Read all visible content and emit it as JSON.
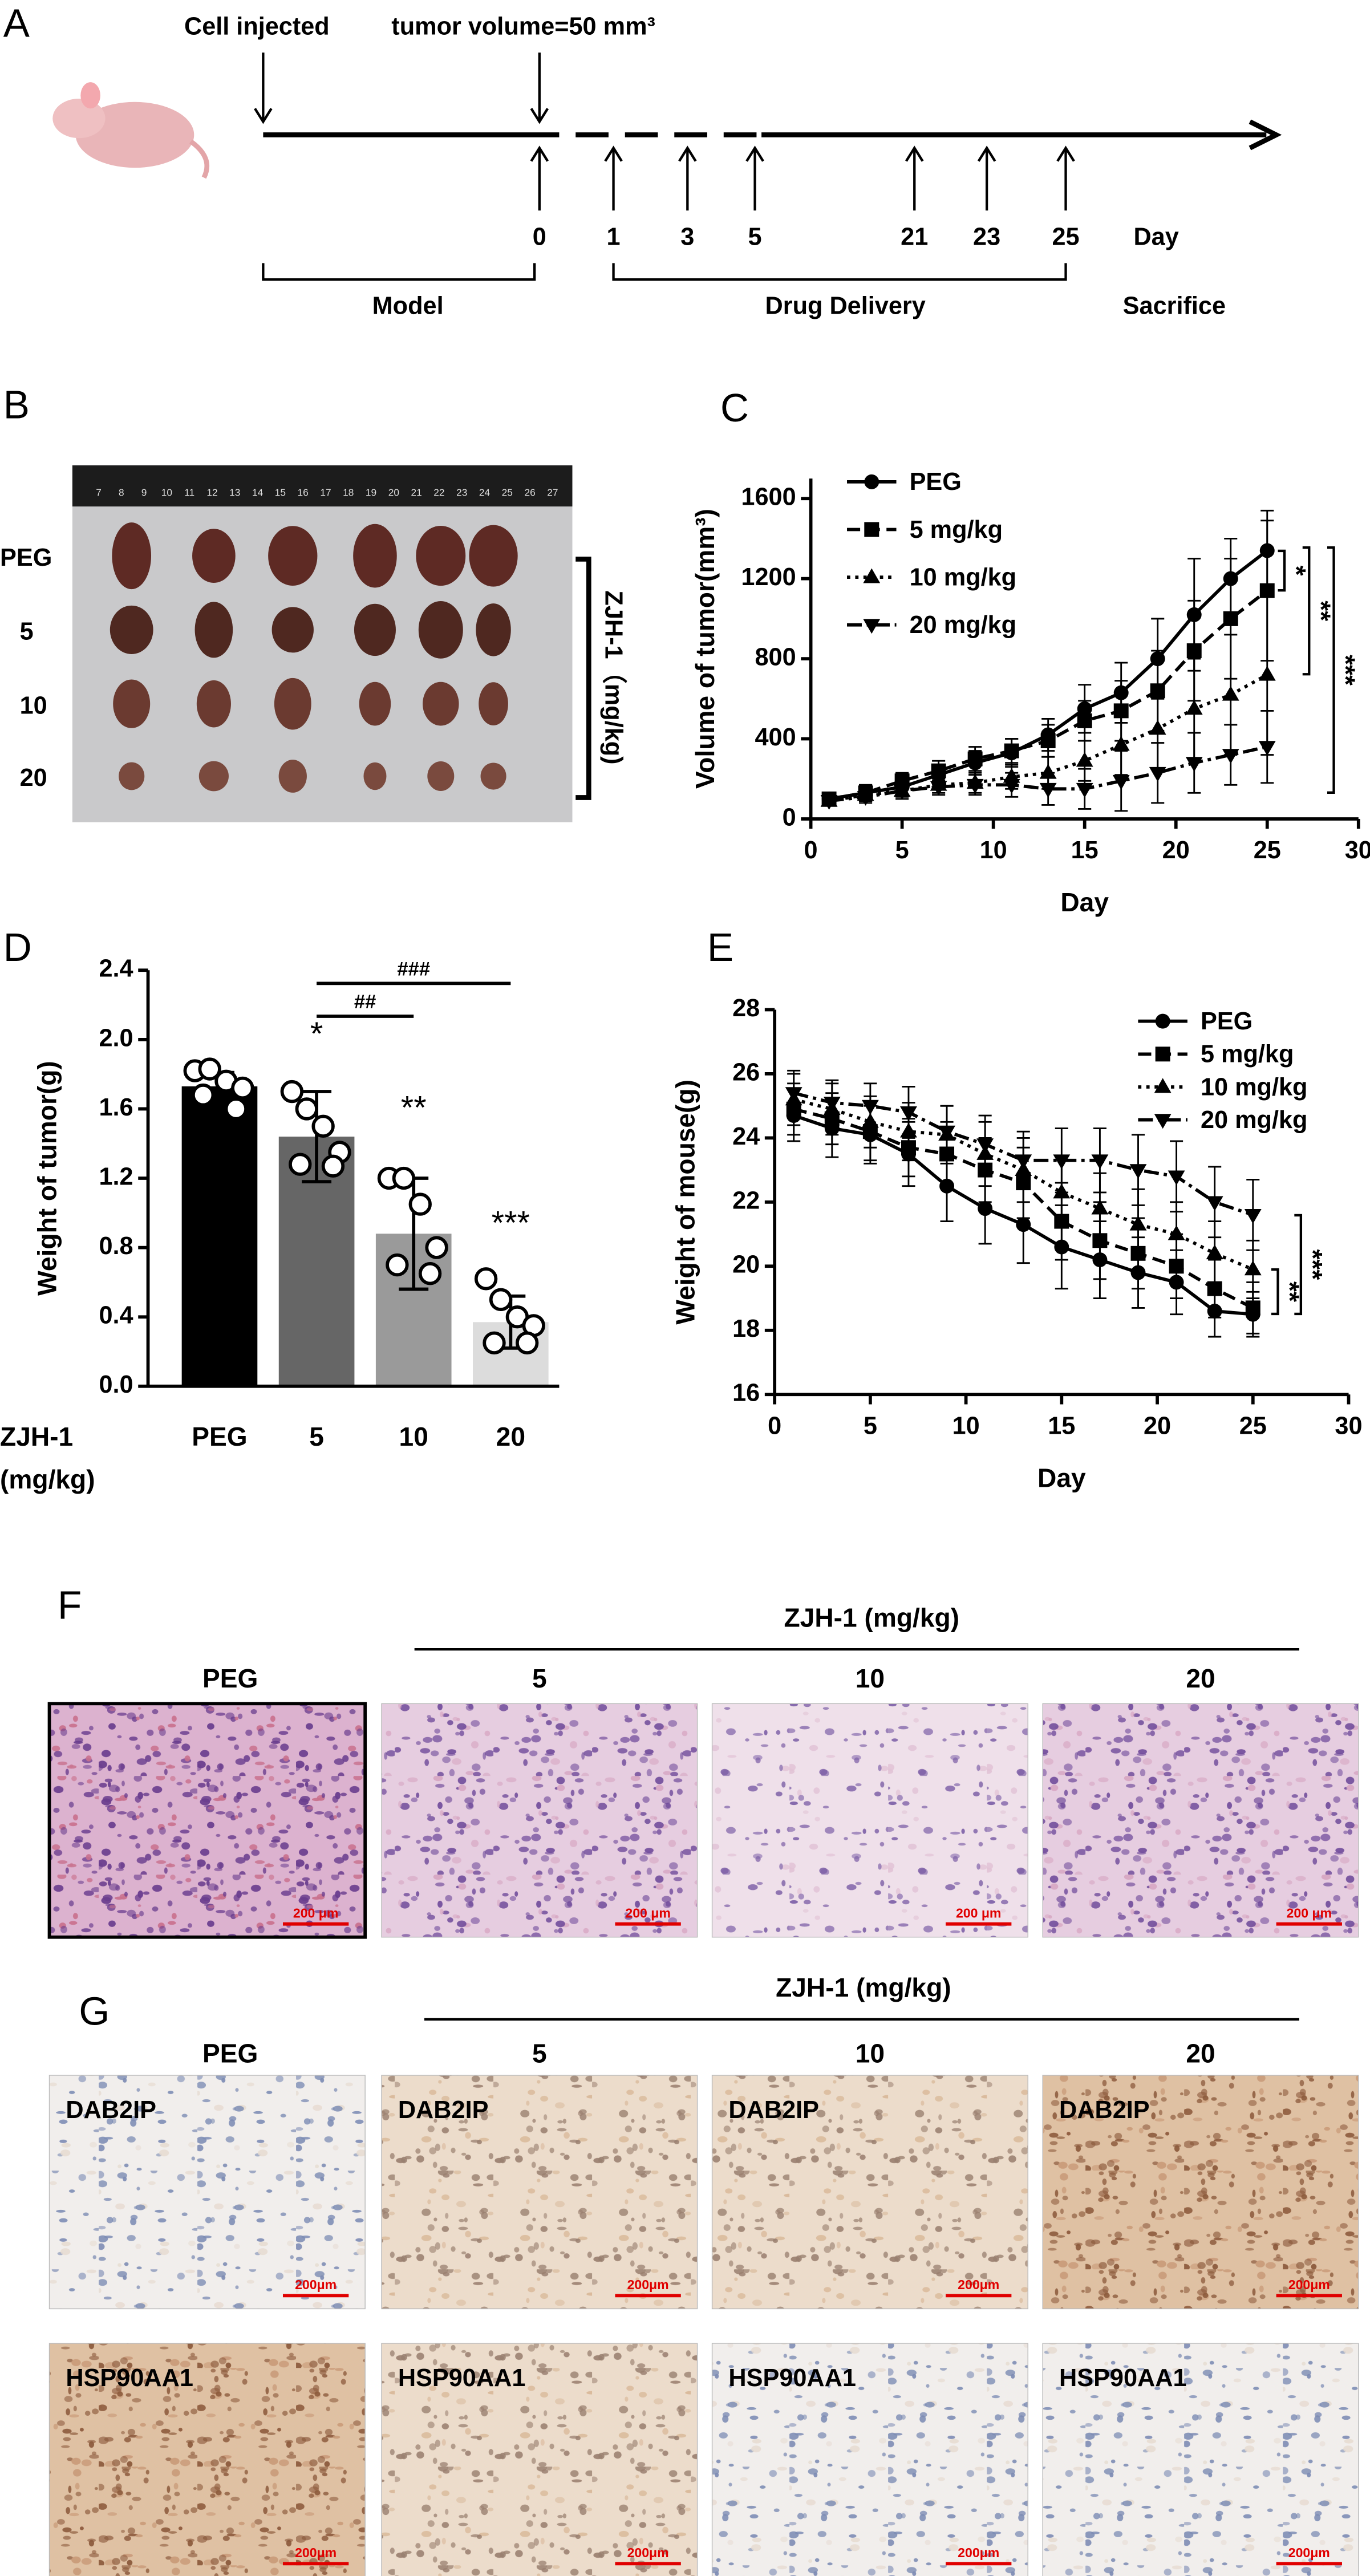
{
  "panel_labels": [
    "A",
    "B",
    "C",
    "D",
    "E",
    "F",
    "G"
  ],
  "timeline": {
    "events": [
      "Cell injected",
      "tumor volume=50 mm³"
    ],
    "days": [
      "0",
      "1",
      "3",
      "5",
      "21",
      "23",
      "25"
    ],
    "day_label": "Day",
    "phases": [
      "Model",
      "Drug Delivery",
      "Sacrifice"
    ]
  },
  "photo": {
    "ruler": [
      "7",
      "8",
      "9",
      "10",
      "11",
      "12",
      "13",
      "14",
      "15",
      "16",
      "17",
      "18",
      "19",
      "20",
      "21",
      "22",
      "23",
      "24",
      "25",
      "26",
      "27"
    ],
    "rows": [
      "PEG",
      "5",
      "10",
      "20"
    ],
    "bracket_label": "ZJH-1（mg/kg)"
  },
  "chart_data": [
    {
      "type": "line",
      "x": [
        1,
        3,
        5,
        7,
        9,
        11,
        13,
        15,
        17,
        19,
        21,
        23,
        25
      ],
      "xlim": [
        0,
        30
      ],
      "xticks": [
        0,
        5,
        10,
        15,
        20,
        25,
        30
      ],
      "ylim": [
        0,
        1700
      ],
      "yticks": [
        0,
        400,
        800,
        1200,
        1600
      ],
      "xlabel": "Day",
      "ylabel": "Volume of tumor(mm³)",
      "legend": "upper left",
      "series": [
        {
          "name": "PEG",
          "color": "#000000",
          "marker": "circle",
          "dash": "solid",
          "values": [
            100,
            130,
            160,
            220,
            280,
            330,
            420,
            550,
            630,
            800,
            1020,
            1200,
            1340
          ],
          "errors": [
            30,
            40,
            40,
            50,
            60,
            70,
            80,
            120,
            150,
            200,
            280,
            200,
            200
          ]
        },
        {
          "name": "5 mg/kg",
          "color": "#000000",
          "marker": "square",
          "dash": "dashed",
          "values": [
            100,
            130,
            190,
            240,
            300,
            340,
            390,
            490,
            540,
            640,
            840,
            1000,
            1140
          ],
          "errors": [
            30,
            40,
            40,
            50,
            60,
            60,
            80,
            100,
            150,
            200,
            250,
            300,
            350
          ]
        },
        {
          "name": "10 mg/kg",
          "color": "#000000",
          "marker": "triangle-up",
          "dash": "dotted",
          "values": [
            90,
            120,
            140,
            170,
            180,
            210,
            230,
            290,
            370,
            450,
            550,
            620,
            720
          ],
          "errors": [
            20,
            30,
            30,
            40,
            50,
            60,
            80,
            100,
            150,
            200,
            250,
            300,
            400
          ]
        },
        {
          "name": "20 mg/kg",
          "color": "#000000",
          "marker": "triangle-down",
          "dash": "dashdot",
          "values": [
            90,
            110,
            140,
            160,
            170,
            170,
            150,
            150,
            190,
            230,
            280,
            320,
            360
          ],
          "errors": [
            20,
            30,
            40,
            40,
            50,
            60,
            80,
            100,
            150,
            150,
            150,
            150,
            180
          ]
        }
      ],
      "annotations": [
        "*",
        "**",
        "***"
      ]
    },
    {
      "type": "bar",
      "categories": [
        "PEG",
        "5",
        "10",
        "20"
      ],
      "values": [
        1.73,
        1.44,
        0.88,
        0.37
      ],
      "errors": [
        0.08,
        0.26,
        0.32,
        0.15
      ],
      "colors": [
        "#000000",
        "#666666",
        "#9a9a9a",
        "#dcdcdc"
      ],
      "points": [
        [
          1.82,
          1.83,
          1.76,
          1.72,
          1.68,
          1.6
        ],
        [
          1.7,
          1.6,
          1.5,
          1.35,
          1.28,
          1.27
        ],
        [
          1.2,
          1.2,
          1.05,
          0.8,
          0.7,
          0.65
        ],
        [
          0.62,
          0.5,
          0.4,
          0.35,
          0.25,
          0.25
        ]
      ],
      "ylim": [
        0,
        2.4
      ],
      "yticks": [
        {
          "value": 0,
          "label": "0.0"
        },
        0.4,
        0.8,
        1.2,
        1.6,
        {
          "value": 2,
          "label": "2.0"
        },
        2.4
      ],
      "ylabel": "Weight of tumor(g)",
      "xlabel": [
        "ZJH-1",
        "(mg/kg)"
      ],
      "annotations": [
        "*",
        "**",
        "***",
        "##",
        "###"
      ]
    },
    {
      "type": "line",
      "x": [
        1,
        3,
        5,
        7,
        9,
        11,
        13,
        15,
        17,
        19,
        21,
        23,
        25
      ],
      "xlim": [
        0,
        30
      ],
      "xticks": [
        0,
        5,
        10,
        15,
        20,
        25,
        30
      ],
      "ylim": [
        16,
        28
      ],
      "yticks": [
        16,
        18,
        20,
        22,
        24,
        26,
        28
      ],
      "xlabel": "Day",
      "ylabel": "Weight of mouse(g)",
      "legend": "upper right",
      "series": [
        {
          "name": "PEG",
          "color": "#000000",
          "marker": "circle",
          "dash": "solid",
          "values": [
            24.7,
            24.3,
            24.1,
            23.5,
            22.5,
            21.8,
            21.3,
            20.6,
            20.2,
            19.8,
            19.5,
            18.6,
            18.5
          ],
          "errors": [
            0.8,
            0.9,
            0.9,
            1.0,
            1.1,
            1.1,
            1.2,
            1.3,
            1.2,
            1.1,
            1.0,
            0.8,
            0.7
          ]
        },
        {
          "name": "5 mg/kg",
          "color": "#000000",
          "marker": "square",
          "dash": "dashed",
          "values": [
            24.9,
            24.6,
            24.2,
            23.7,
            23.5,
            23.0,
            22.6,
            21.4,
            20.8,
            20.4,
            20.0,
            19.3,
            18.7
          ],
          "errors": [
            0.8,
            0.8,
            0.9,
            0.9,
            1.0,
            1.0,
            1.1,
            1.2,
            1.2,
            1.1,
            1.0,
            0.9,
            0.8
          ]
        },
        {
          "name": "10 mg/kg",
          "color": "#000000",
          "marker": "triangle-up",
          "dash": "dotted",
          "values": [
            25.2,
            24.9,
            24.5,
            24.2,
            24.1,
            23.5,
            23.0,
            22.3,
            21.8,
            21.3,
            21.0,
            20.4,
            19.9
          ],
          "errors": [
            0.8,
            0.8,
            0.8,
            0.9,
            0.9,
            1.0,
            1.0,
            1.1,
            1.1,
            1.1,
            1.0,
            1.0,
            0.9
          ]
        },
        {
          "name": "20 mg/kg",
          "color": "#000000",
          "marker": "triangle-down",
          "dash": "dashdot",
          "values": [
            25.4,
            25.1,
            25.0,
            24.8,
            24.2,
            23.8,
            23.3,
            23.3,
            23.3,
            23.0,
            22.8,
            22.0,
            21.6
          ],
          "errors": [
            0.7,
            0.7,
            0.7,
            0.8,
            0.8,
            0.9,
            0.9,
            1.0,
            1.0,
            1.1,
            1.1,
            1.1,
            1.1
          ]
        }
      ],
      "annotations": [
        "**",
        "***"
      ]
    }
  ],
  "histology": {
    "header": "ZJH-1 (mg/kg)",
    "groups": [
      "PEG",
      "5",
      "10",
      "20"
    ],
    "scale_bars": [
      "200 μm",
      "200 μm",
      "200 μm",
      "200 μm"
    ]
  },
  "ihc": {
    "header": "ZJH-1 (mg/kg)",
    "groups": [
      "PEG",
      "5",
      "10",
      "20"
    ],
    "rows": [
      {
        "labels": [
          "DAB2IP",
          "DAB2IP",
          "DAB2IP",
          "DAB2IP"
        ],
        "scale_bars": [
          "200μm",
          "200μm",
          "200μm",
          "200μm"
        ]
      },
      {
        "labels": [
          "HSP90AA1",
          "HSP90AA1",
          "HSP90AA1",
          "HSP90AA1"
        ],
        "scale_bars": [
          "200μm",
          "200μm",
          "200μm",
          "200μm"
        ]
      }
    ]
  }
}
